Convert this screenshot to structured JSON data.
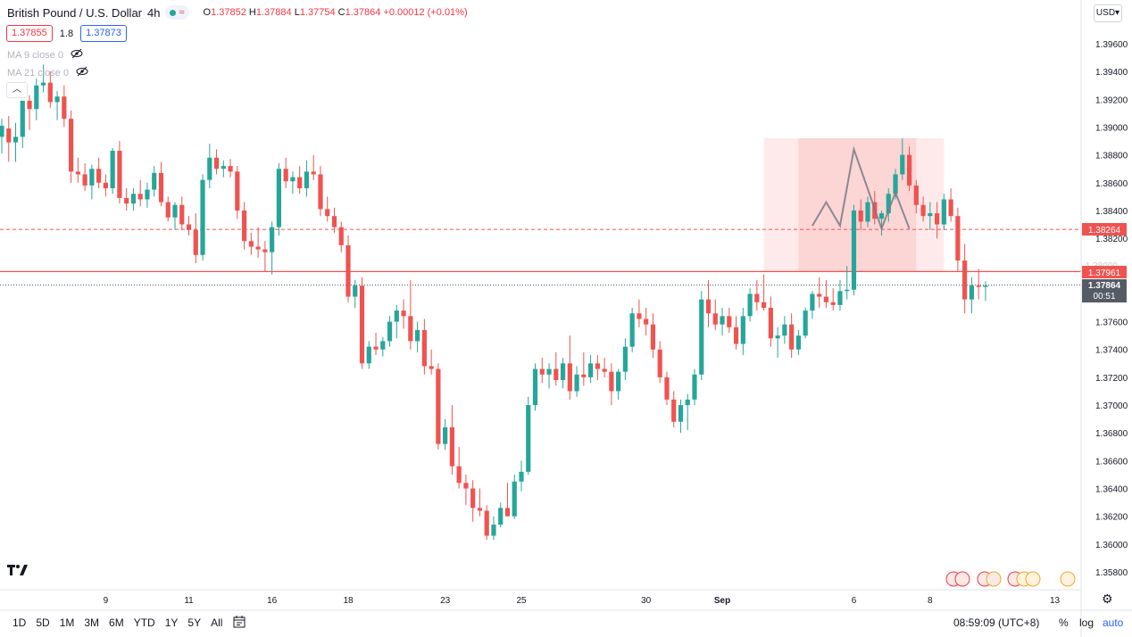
{
  "legend": {
    "symbol": "British Pound / U.S. Dollar",
    "interval": "4h",
    "o_label": "O",
    "o": "1.37852",
    "h_label": "H",
    "h": "1.37884",
    "l_label": "L",
    "l": "1.37754",
    "c_label": "C",
    "c": "1.37864",
    "change": "+0.00012 (+0.01%)"
  },
  "quote": {
    "sell": "1.37855",
    "spread": "1.8",
    "buy": "1.37873"
  },
  "indicators": [
    {
      "label": "MA 9 close 0"
    },
    {
      "label": "MA 21 close 0"
    }
  ],
  "currency_button": "USD",
  "colors": {
    "up": "#26a69a",
    "down": "#ef5350",
    "zone": "#fde3e3",
    "zone_dark": "#fbcfd0",
    "pattern": "#787b86",
    "axis_text": "#131722"
  },
  "price_tags": {
    "target": "1.38264",
    "entry": "1.37961",
    "last": "1.37864",
    "countdown": "00:51",
    "hidden_tick": "1.38000"
  },
  "bottom": {
    "ranges": [
      "1D",
      "5D",
      "1M",
      "3M",
      "6M",
      "YTD",
      "1Y",
      "5Y",
      "All"
    ],
    "time": "08:59:09 (UTC+8)",
    "percent": "%",
    "log": "log",
    "auto": "auto"
  },
  "chart_data": {
    "type": "candlestick",
    "symbol": "British Pound / U.S. Dollar",
    "interval": "4h",
    "ylim": [
      1.3565,
      1.3975
    ],
    "y_ticks": [
      "1.39600",
      "1.39400",
      "1.39200",
      "1.39000",
      "1.38800",
      "1.38600",
      "1.38400",
      "1.38200",
      "1.37600",
      "1.37400",
      "1.37200",
      "1.37000",
      "1.36800",
      "1.36600",
      "1.36400",
      "1.36200",
      "1.36000",
      "1.35800"
    ],
    "x_ticks": [
      {
        "label": "9",
        "i": 15
      },
      {
        "label": "11",
        "i": 27
      },
      {
        "label": "16",
        "i": 39
      },
      {
        "label": "18",
        "i": 50
      },
      {
        "label": "23",
        "i": 64
      },
      {
        "label": "25",
        "i": 75
      },
      {
        "label": "30",
        "i": 93
      },
      {
        "label": "Sep",
        "i": 104
      },
      {
        "label": "6",
        "i": 123
      },
      {
        "label": "8",
        "i": 134
      },
      {
        "label": "13",
        "i": 152
      }
    ],
    "lines": {
      "target": 1.38264,
      "entry": 1.37961,
      "last": 1.37864
    },
    "zone": {
      "i_start": 110,
      "i_end": 136,
      "y_top": 1.3892,
      "y_bottom": 1.37961,
      "dark_i_start": 115,
      "dark_i_end": 132
    },
    "pattern": [
      {
        "i": 117,
        "y": 1.3829
      },
      {
        "i": 119,
        "y": 1.3846
      },
      {
        "i": 121,
        "y": 1.3829
      },
      {
        "i": 123,
        "y": 1.3884
      },
      {
        "i": 127,
        "y": 1.3827
      },
      {
        "i": 129,
        "y": 1.3853
      },
      {
        "i": 131,
        "y": 1.3827
      }
    ],
    "candles": [
      [
        1.3893,
        1.3906,
        1.3881,
        1.3901
      ],
      [
        1.3899,
        1.3908,
        1.3875,
        1.3889
      ],
      [
        1.3889,
        1.3903,
        1.3875,
        1.3893
      ],
      [
        1.3893,
        1.3917,
        1.3885,
        1.3919
      ],
      [
        1.3919,
        1.3923,
        1.3898,
        1.3913
      ],
      [
        1.3913,
        1.3935,
        1.3905,
        1.393
      ],
      [
        1.393,
        1.3945,
        1.3925,
        1.3932
      ],
      [
        1.3932,
        1.394,
        1.3914,
        1.3918
      ],
      [
        1.3918,
        1.3926,
        1.3905,
        1.3922
      ],
      [
        1.3922,
        1.393,
        1.39,
        1.3906
      ],
      [
        1.3906,
        1.3912,
        1.386,
        1.3868
      ],
      [
        1.3868,
        1.3878,
        1.386,
        1.3866
      ],
      [
        1.3866,
        1.3874,
        1.3854,
        1.3858
      ],
      [
        1.3858,
        1.3873,
        1.3848,
        1.387
      ],
      [
        1.387,
        1.3878,
        1.3856,
        1.386
      ],
      [
        1.386,
        1.3866,
        1.385,
        1.3856
      ],
      [
        1.3856,
        1.3885,
        1.3852,
        1.3883
      ],
      [
        1.3883,
        1.389,
        1.3845,
        1.3849
      ],
      [
        1.3849,
        1.3856,
        1.384,
        1.3845
      ],
      [
        1.3845,
        1.3856,
        1.384,
        1.3852
      ],
      [
        1.3852,
        1.3862,
        1.3843,
        1.3848
      ],
      [
        1.3848,
        1.386,
        1.3842,
        1.3855
      ],
      [
        1.3855,
        1.3872,
        1.385,
        1.3867
      ],
      [
        1.3867,
        1.3875,
        1.3843,
        1.3846
      ],
      [
        1.3846,
        1.385,
        1.3832,
        1.3835
      ],
      [
        1.3835,
        1.3846,
        1.3826,
        1.3844
      ],
      [
        1.3844,
        1.385,
        1.3826,
        1.383
      ],
      [
        1.383,
        1.3836,
        1.3822,
        1.3826
      ],
      [
        1.3826,
        1.3838,
        1.3802,
        1.3808
      ],
      [
        1.3808,
        1.3866,
        1.3804,
        1.3862
      ],
      [
        1.3862,
        1.3888,
        1.3856,
        1.3878
      ],
      [
        1.3878,
        1.3884,
        1.3866,
        1.387
      ],
      [
        1.387,
        1.3876,
        1.3864,
        1.3872
      ],
      [
        1.3872,
        1.3877,
        1.3864,
        1.3868
      ],
      [
        1.3868,
        1.3872,
        1.3834,
        1.384
      ],
      [
        1.384,
        1.3846,
        1.3812,
        1.3818
      ],
      [
        1.3818,
        1.3824,
        1.3808,
        1.3814
      ],
      [
        1.3814,
        1.3828,
        1.3806,
        1.3812
      ],
      [
        1.3812,
        1.3818,
        1.3796,
        1.381
      ],
      [
        1.381,
        1.3832,
        1.3794,
        1.3828
      ],
      [
        1.3828,
        1.3874,
        1.3822,
        1.387
      ],
      [
        1.387,
        1.3878,
        1.3856,
        1.3861
      ],
      [
        1.3861,
        1.3868,
        1.3852,
        1.3864
      ],
      [
        1.3864,
        1.3872,
        1.3852,
        1.3856
      ],
      [
        1.3856,
        1.3876,
        1.385,
        1.3868
      ],
      [
        1.3868,
        1.388,
        1.3862,
        1.3866
      ],
      [
        1.3866,
        1.3872,
        1.3836,
        1.3841
      ],
      [
        1.3841,
        1.385,
        1.3832,
        1.3836
      ],
      [
        1.3836,
        1.3842,
        1.3824,
        1.3828
      ],
      [
        1.3828,
        1.3832,
        1.381,
        1.3815
      ],
      [
        1.3815,
        1.3822,
        1.3774,
        1.3778
      ],
      [
        1.3778,
        1.379,
        1.377,
        1.3786
      ],
      [
        1.3786,
        1.3792,
        1.3726,
        1.373
      ],
      [
        1.373,
        1.3746,
        1.3726,
        1.3742
      ],
      [
        1.3742,
        1.3752,
        1.3736,
        1.374
      ],
      [
        1.374,
        1.3749,
        1.3735,
        1.3746
      ],
      [
        1.3746,
        1.3764,
        1.3742,
        1.376
      ],
      [
        1.376,
        1.3772,
        1.3748,
        1.3768
      ],
      [
        1.3768,
        1.3776,
        1.3755,
        1.3764
      ],
      [
        1.3764,
        1.379,
        1.374,
        1.3746
      ],
      [
        1.3746,
        1.376,
        1.3738,
        1.3754
      ],
      [
        1.3754,
        1.3762,
        1.3722,
        1.3728
      ],
      [
        1.3728,
        1.374,
        1.3722,
        1.3726
      ],
      [
        1.3726,
        1.373,
        1.3668,
        1.3672
      ],
      [
        1.3672,
        1.369,
        1.3668,
        1.3684
      ],
      [
        1.3684,
        1.37,
        1.365,
        1.3656
      ],
      [
        1.3656,
        1.367,
        1.364,
        1.3644
      ],
      [
        1.3644,
        1.365,
        1.3628,
        1.364
      ],
      [
        1.364,
        1.3646,
        1.3616,
        1.3626
      ],
      [
        1.3626,
        1.364,
        1.362,
        1.3624
      ],
      [
        1.3624,
        1.3628,
        1.3603,
        1.3606
      ],
      [
        1.3606,
        1.362,
        1.3603,
        1.3614
      ],
      [
        1.3614,
        1.363,
        1.3612,
        1.3626
      ],
      [
        1.3626,
        1.3644,
        1.362,
        1.362
      ],
      [
        1.362,
        1.365,
        1.3618,
        1.3645
      ],
      [
        1.3645,
        1.366,
        1.3638,
        1.3652
      ],
      [
        1.3652,
        1.3706,
        1.365,
        1.37
      ],
      [
        1.37,
        1.373,
        1.3696,
        1.3726
      ],
      [
        1.3726,
        1.3734,
        1.3716,
        1.3722
      ],
      [
        1.3722,
        1.373,
        1.3712,
        1.3726
      ],
      [
        1.3726,
        1.3738,
        1.3714,
        1.3718
      ],
      [
        1.3718,
        1.3734,
        1.3712,
        1.373
      ],
      [
        1.373,
        1.375,
        1.3704,
        1.371
      ],
      [
        1.371,
        1.3728,
        1.3706,
        1.3722
      ],
      [
        1.3722,
        1.3738,
        1.3714,
        1.372
      ],
      [
        1.372,
        1.3736,
        1.3716,
        1.373
      ],
      [
        1.373,
        1.3736,
        1.3718,
        1.3726
      ],
      [
        1.3726,
        1.3734,
        1.372,
        1.3724
      ],
      [
        1.3724,
        1.373,
        1.37,
        1.371
      ],
      [
        1.371,
        1.3726,
        1.3704,
        1.3724
      ],
      [
        1.3724,
        1.3748,
        1.3718,
        1.3742
      ],
      [
        1.3742,
        1.377,
        1.3738,
        1.3766
      ],
      [
        1.3766,
        1.3776,
        1.3756,
        1.3762
      ],
      [
        1.3762,
        1.377,
        1.375,
        1.3758
      ],
      [
        1.3758,
        1.3766,
        1.3734,
        1.374
      ],
      [
        1.374,
        1.3746,
        1.3716,
        1.372
      ],
      [
        1.372,
        1.3724,
        1.37,
        1.3704
      ],
      [
        1.3704,
        1.371,
        1.3684,
        1.3688
      ],
      [
        1.3688,
        1.3704,
        1.368,
        1.37
      ],
      [
        1.37,
        1.3708,
        1.3682,
        1.3704
      ],
      [
        1.3704,
        1.3726,
        1.37,
        1.3722
      ],
      [
        1.3722,
        1.3782,
        1.3718,
        1.3776
      ],
      [
        1.3776,
        1.379,
        1.3756,
        1.3766
      ],
      [
        1.3766,
        1.3776,
        1.3754,
        1.3758
      ],
      [
        1.3758,
        1.377,
        1.375,
        1.3764
      ],
      [
        1.3764,
        1.377,
        1.3752,
        1.3756
      ],
      [
        1.3756,
        1.3764,
        1.374,
        1.3744
      ],
      [
        1.3744,
        1.377,
        1.3736,
        1.3764
      ],
      [
        1.3764,
        1.3784,
        1.376,
        1.378
      ],
      [
        1.378,
        1.379,
        1.3768,
        1.3774
      ],
      [
        1.3774,
        1.3794,
        1.3768,
        1.377
      ],
      [
        1.377,
        1.3778,
        1.3742,
        1.3748
      ],
      [
        1.3748,
        1.3756,
        1.3734,
        1.375
      ],
      [
        1.375,
        1.3764,
        1.3744,
        1.3758
      ],
      [
        1.3758,
        1.3766,
        1.3734,
        1.374
      ],
      [
        1.374,
        1.3754,
        1.3736,
        1.375
      ],
      [
        1.375,
        1.377,
        1.3748,
        1.3768
      ],
      [
        1.3768,
        1.3782,
        1.3762,
        1.378
      ],
      [
        1.378,
        1.3792,
        1.377,
        1.3778
      ],
      [
        1.3778,
        1.379,
        1.377,
        1.3774
      ],
      [
        1.3774,
        1.3784,
        1.3768,
        1.3772
      ],
      [
        1.3772,
        1.379,
        1.3768,
        1.3782
      ],
      [
        1.3782,
        1.38,
        1.3776,
        1.3783
      ],
      [
        1.3783,
        1.3844,
        1.3779,
        1.384
      ],
      [
        1.384,
        1.3848,
        1.3826,
        1.3832
      ],
      [
        1.3832,
        1.385,
        1.3828,
        1.3846
      ],
      [
        1.3846,
        1.3854,
        1.383,
        1.3834
      ],
      [
        1.3834,
        1.384,
        1.3822,
        1.3838
      ],
      [
        1.3838,
        1.3856,
        1.3832,
        1.3852
      ],
      [
        1.3852,
        1.387,
        1.3848,
        1.3866
      ],
      [
        1.3866,
        1.3892,
        1.3862,
        1.388
      ],
      [
        1.388,
        1.3886,
        1.3854,
        1.3858
      ],
      [
        1.3858,
        1.3862,
        1.3838,
        1.3844
      ],
      [
        1.3844,
        1.385,
        1.3832,
        1.3836
      ],
      [
        1.3836,
        1.3846,
        1.3826,
        1.3838
      ],
      [
        1.3838,
        1.3846,
        1.382,
        1.383
      ],
      [
        1.383,
        1.3852,
        1.3826,
        1.3848
      ],
      [
        1.3848,
        1.3856,
        1.3832,
        1.3836
      ],
      [
        1.3836,
        1.3842,
        1.3796,
        1.3804
      ],
      [
        1.3804,
        1.3816,
        1.3766,
        1.3776
      ],
      [
        1.3776,
        1.3792,
        1.3766,
        1.3786
      ],
      [
        1.3786,
        1.3798,
        1.3776,
        1.3785
      ],
      [
        1.3785,
        1.3789,
        1.3775,
        1.3786
      ]
    ]
  }
}
